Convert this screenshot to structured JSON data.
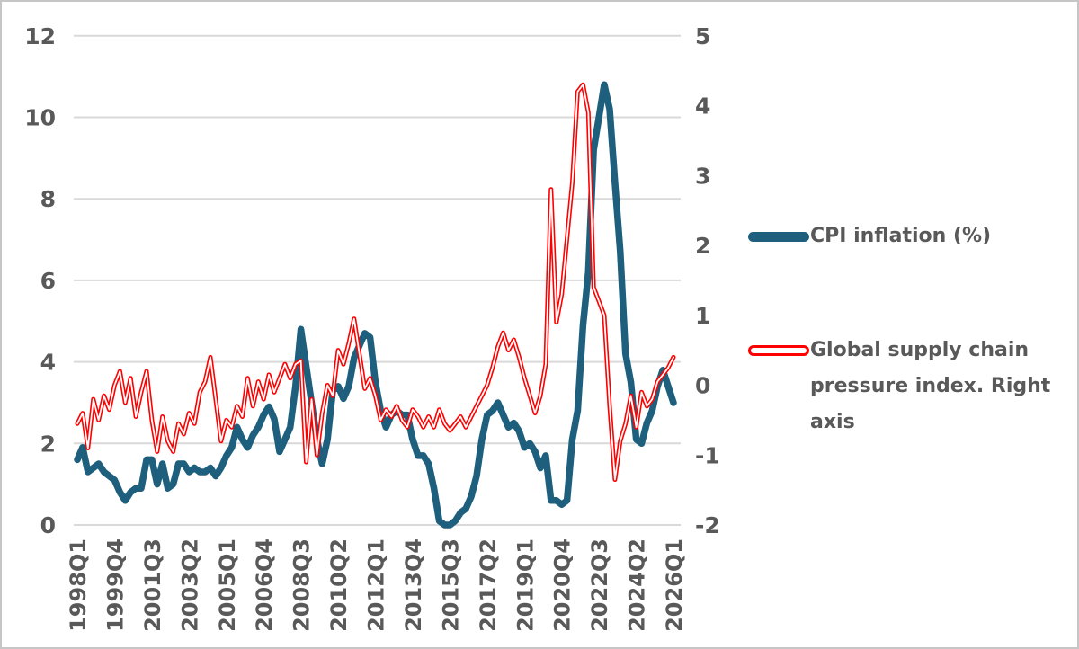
{
  "colors": {
    "cpi_line": "#1e5f7d",
    "gscpi_line": "#ff0000",
    "gscpi_core": "#ffffff",
    "gridline": "#d9d9d9",
    "axis_text": "#595959",
    "frame_border": "#c6c6c6"
  },
  "legend": {
    "items": [
      {
        "label": "CPI inflation (%)"
      },
      {
        "label": "Global supply chain pressure index. Right axis"
      }
    ]
  },
  "chart_data": {
    "type": "line",
    "title": "",
    "grid": true,
    "legend_position": "right",
    "x_tick_interval": 7,
    "x_tick_labels": [
      "1998Q1",
      "1999Q4",
      "2001Q3",
      "2003Q2",
      "2005Q1",
      "2006Q4",
      "2008Q3",
      "2010Q2",
      "2012Q1",
      "2013Q4",
      "2015Q3",
      "2017Q2",
      "2019Q1",
      "2020Q4",
      "2022Q3",
      "2024Q2",
      "2026Q1"
    ],
    "left_axis": {
      "min": 0,
      "max": 12,
      "ticks": [
        12,
        10,
        8,
        6,
        4,
        2,
        0
      ]
    },
    "right_axis": {
      "min": -2,
      "max": 5,
      "ticks": [
        5,
        4,
        3,
        2,
        1,
        0,
        -1,
        -2
      ]
    },
    "categories": [
      "1998Q1",
      "1998Q2",
      "1998Q3",
      "1998Q4",
      "1999Q1",
      "1999Q2",
      "1999Q3",
      "1999Q4",
      "2000Q1",
      "2000Q2",
      "2000Q3",
      "2000Q4",
      "2001Q1",
      "2001Q2",
      "2001Q3",
      "2001Q4",
      "2002Q1",
      "2002Q2",
      "2002Q3",
      "2002Q4",
      "2003Q1",
      "2003Q2",
      "2003Q3",
      "2003Q4",
      "2004Q1",
      "2004Q2",
      "2004Q3",
      "2004Q4",
      "2005Q1",
      "2005Q2",
      "2005Q3",
      "2005Q4",
      "2006Q1",
      "2006Q2",
      "2006Q3",
      "2006Q4",
      "2007Q1",
      "2007Q2",
      "2007Q3",
      "2007Q4",
      "2008Q1",
      "2008Q2",
      "2008Q3",
      "2008Q4",
      "2009Q1",
      "2009Q2",
      "2009Q3",
      "2009Q4",
      "2010Q1",
      "2010Q2",
      "2010Q3",
      "2010Q4",
      "2011Q1",
      "2011Q2",
      "2011Q3",
      "2011Q4",
      "2012Q1",
      "2012Q2",
      "2012Q3",
      "2012Q4",
      "2013Q1",
      "2013Q2",
      "2013Q3",
      "2013Q4",
      "2014Q1",
      "2014Q2",
      "2014Q3",
      "2014Q4",
      "2015Q1",
      "2015Q2",
      "2015Q3",
      "2015Q4",
      "2016Q1",
      "2016Q2",
      "2016Q3",
      "2016Q4",
      "2017Q1",
      "2017Q2",
      "2017Q3",
      "2017Q4",
      "2018Q1",
      "2018Q2",
      "2018Q3",
      "2018Q4",
      "2019Q1",
      "2019Q2",
      "2019Q3",
      "2019Q4",
      "2020Q1",
      "2020Q2",
      "2020Q3",
      "2020Q4",
      "2021Q1",
      "2021Q2",
      "2021Q3",
      "2021Q4",
      "2022Q1",
      "2022Q2",
      "2022Q3",
      "2022Q4",
      "2023Q1",
      "2023Q2",
      "2023Q3",
      "2023Q4",
      "2024Q1",
      "2024Q2",
      "2024Q3",
      "2024Q4",
      "2025Q1",
      "2025Q2",
      "2025Q3",
      "2025Q4",
      "2026Q1"
    ],
    "series": [
      {
        "name": "CPI inflation (%)",
        "axis": "left",
        "color": "#1e5f7d",
        "values": [
          1.6,
          1.9,
          1.3,
          1.4,
          1.5,
          1.3,
          1.2,
          1.1,
          0.8,
          0.6,
          0.8,
          0.9,
          0.9,
          1.6,
          1.6,
          1.0,
          1.5,
          0.9,
          1.0,
          1.5,
          1.5,
          1.3,
          1.4,
          1.3,
          1.3,
          1.4,
          1.2,
          1.4,
          1.7,
          1.9,
          2.4,
          2.1,
          1.9,
          2.2,
          2.4,
          2.7,
          2.9,
          2.6,
          1.8,
          2.1,
          2.4,
          3.4,
          4.8,
          3.9,
          3.0,
          2.1,
          1.5,
          2.1,
          3.3,
          3.4,
          3.1,
          3.4,
          4.1,
          4.4,
          4.7,
          4.6,
          3.5,
          2.8,
          2.4,
          2.7,
          2.8,
          2.7,
          2.7,
          2.1,
          1.7,
          1.7,
          1.5,
          0.9,
          0.1,
          0.0,
          0.0,
          0.1,
          0.3,
          0.4,
          0.7,
          1.2,
          2.1,
          2.7,
          2.8,
          3.0,
          2.7,
          2.4,
          2.5,
          2.3,
          1.9,
          2.0,
          1.8,
          1.4,
          1.7,
          0.6,
          0.6,
          0.5,
          0.6,
          2.1,
          2.8,
          4.9,
          6.2,
          9.2,
          10.0,
          10.8,
          10.2,
          8.4,
          6.7,
          4.2,
          3.5,
          2.1,
          2.0,
          2.5,
          2.8,
          3.4,
          3.8,
          3.4,
          3.0
        ]
      },
      {
        "name": "Global supply chain pressure index. Right axis",
        "axis": "right",
        "color": "#ff0000",
        "values": [
          -0.55,
          -0.4,
          -0.9,
          -0.2,
          -0.5,
          -0.15,
          -0.35,
          0.0,
          0.2,
          -0.25,
          0.1,
          -0.45,
          -0.1,
          0.2,
          -0.5,
          -0.95,
          -0.45,
          -0.8,
          -0.95,
          -0.55,
          -0.7,
          -0.4,
          -0.55,
          -0.1,
          0.05,
          0.4,
          -0.2,
          -0.8,
          -0.5,
          -0.6,
          -0.3,
          -0.45,
          0.1,
          -0.3,
          0.05,
          -0.2,
          0.15,
          -0.1,
          0.1,
          0.3,
          0.1,
          0.3,
          0.35,
          -1.1,
          -0.2,
          -1.0,
          -0.4,
          0.0,
          -0.15,
          0.5,
          0.3,
          0.6,
          0.95,
          0.45,
          -0.05,
          0.1,
          -0.15,
          -0.5,
          -0.35,
          -0.45,
          -0.3,
          -0.5,
          -0.6,
          -0.35,
          -0.45,
          -0.6,
          -0.45,
          -0.6,
          -0.35,
          -0.55,
          -0.65,
          -0.55,
          -0.45,
          -0.6,
          -0.45,
          -0.3,
          -0.15,
          0.0,
          0.25,
          0.55,
          0.75,
          0.5,
          0.65,
          0.4,
          0.1,
          -0.15,
          -0.4,
          -0.15,
          0.3,
          2.8,
          0.9,
          1.3,
          2.1,
          2.9,
          4.2,
          4.3,
          3.9,
          1.4,
          1.2,
          1.0,
          -0.3,
          -1.35,
          -0.8,
          -0.55,
          -0.15,
          -0.6,
          -0.1,
          -0.3,
          -0.2,
          0.05,
          0.15,
          0.25,
          0.4
        ]
      }
    ]
  }
}
